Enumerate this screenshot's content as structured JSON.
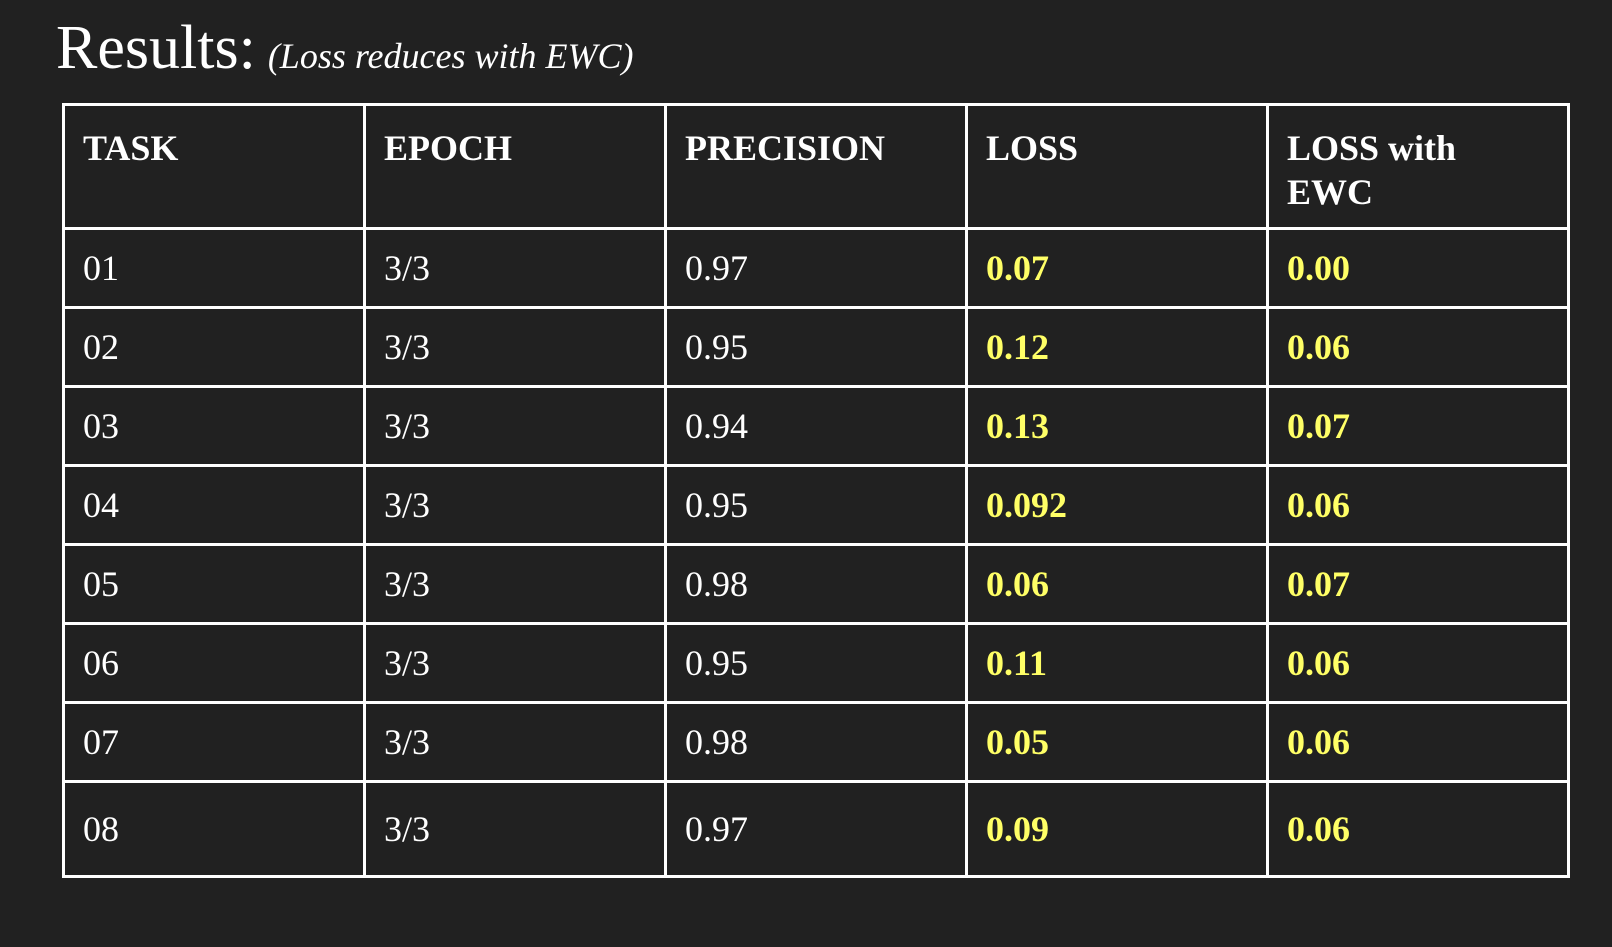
{
  "title": {
    "main": "Results:",
    "subtitle": "(Loss reduces with EWC)"
  },
  "table": {
    "headers": [
      "TASK",
      "EPOCH",
      "PRECISION",
      "LOSS",
      "LOSS with EWC"
    ],
    "rows": [
      [
        "01",
        "3/3",
        "0.97",
        "0.07",
        "0.00"
      ],
      [
        "02",
        "3/3",
        "0.95",
        "0.12",
        "0.06"
      ],
      [
        "03",
        "3/3",
        "0.94",
        "0.13",
        "0.07"
      ],
      [
        "04",
        "3/3",
        "0.95",
        "0.092",
        "0.06"
      ],
      [
        "05",
        "3/3",
        "0.98",
        "0.06",
        "0.07"
      ],
      [
        "06",
        "3/3",
        "0.95",
        "0.11",
        "0.06"
      ],
      [
        "07",
        "3/3",
        "0.98",
        "0.05",
        "0.06"
      ],
      [
        "08",
        "3/3",
        "0.97",
        "0.09",
        "0.06"
      ]
    ]
  },
  "colors": {
    "background": "#212121",
    "text": "#ffffff",
    "highlight": "#ffff66"
  }
}
